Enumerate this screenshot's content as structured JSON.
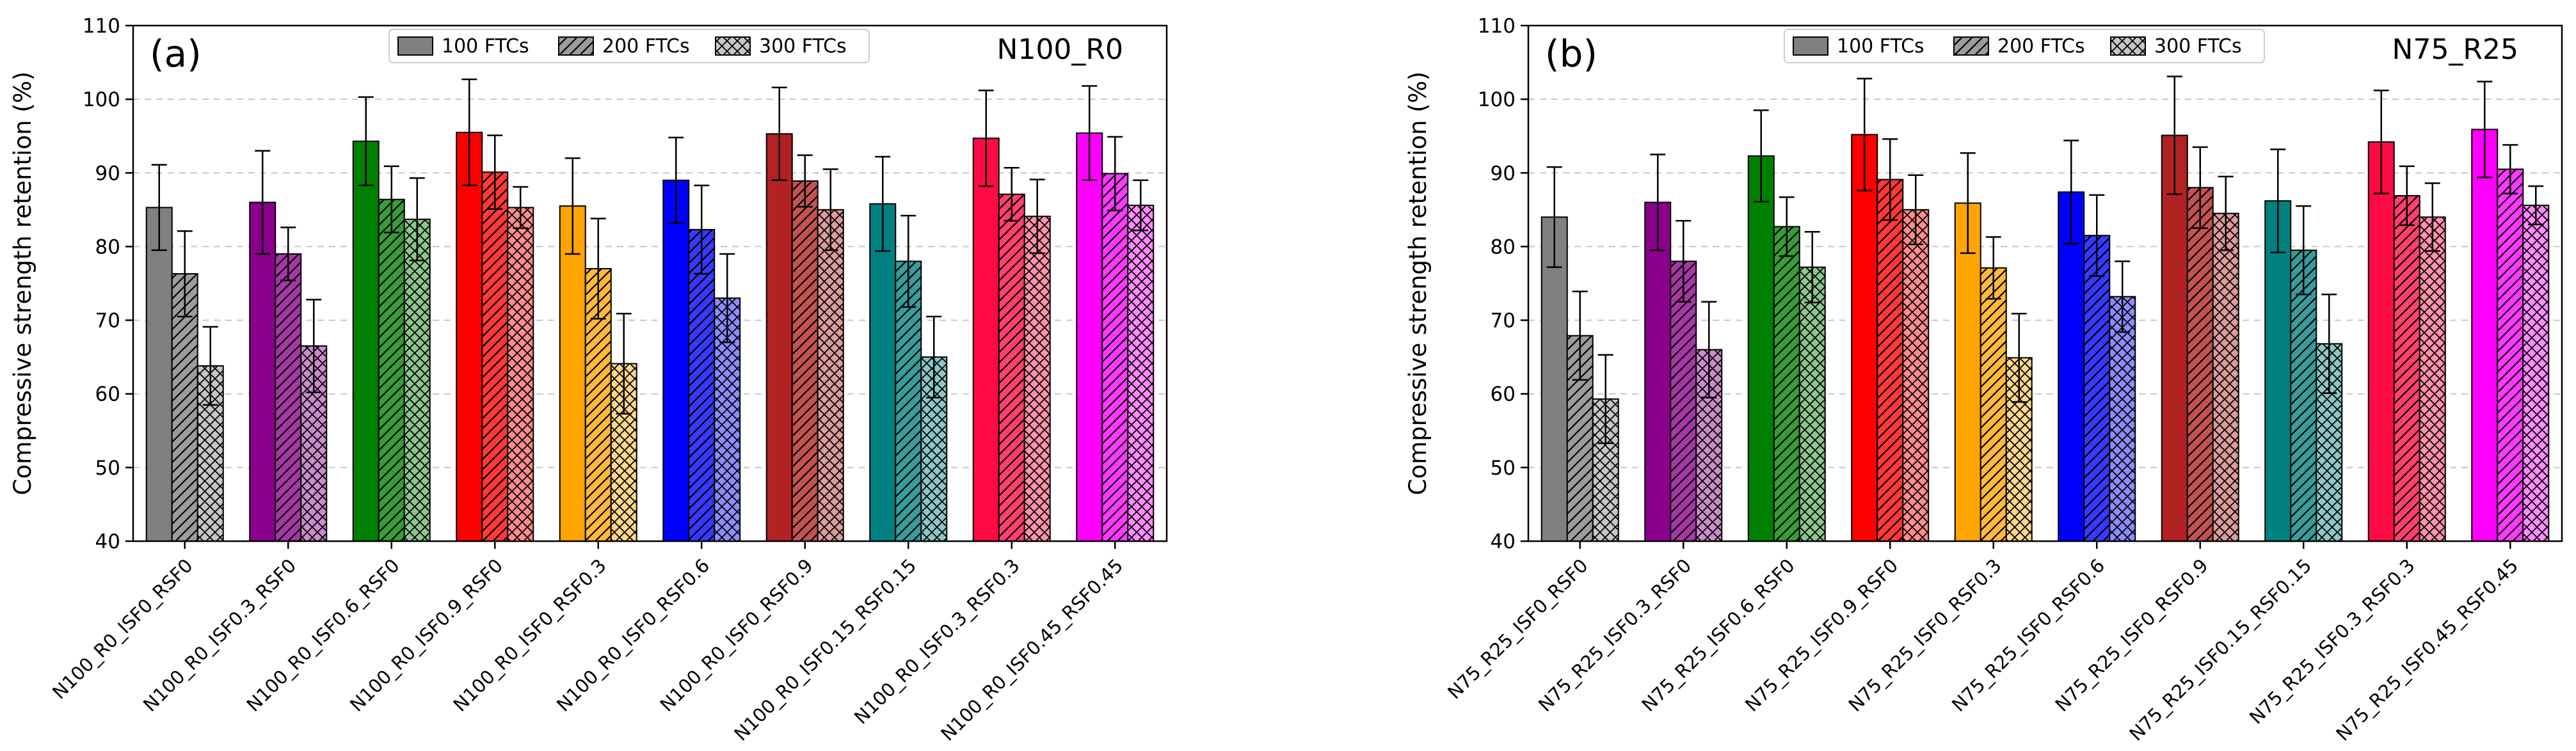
{
  "chart_data": [
    {
      "type": "bar",
      "panel_label": "(a)",
      "title": "N100_R0",
      "xlabel": "",
      "ylabel": "Compressive strength retention (%)",
      "ylim": [
        40,
        110
      ],
      "yticks": [
        40,
        50,
        60,
        70,
        80,
        90,
        100,
        110
      ],
      "grid": true,
      "legend_position": "top-center",
      "series_names": [
        "100 FTCs",
        "200 FTCs",
        "300 FTCs"
      ],
      "categories": [
        "N100_R0_ISF0_RSF0",
        "N100_R0_ISF0.3_RSF0",
        "N100_R0_ISF0.6_RSF0",
        "N100_R0_ISF0.9_RSF0",
        "N100_R0_ISF0_RSF0.3",
        "N100_R0_ISF0_RSF0.6",
        "N100_R0_ISF0_RSF0.9",
        "N100_R0_ISF0.15_RSF0.15",
        "N100_R0_ISF0.3_RSF0.3",
        "N100_R0_ISF0.45_RSF0.45"
      ],
      "colors": [
        "#808080",
        "#8b008b",
        "#008000",
        "#ff0000",
        "#ffa500",
        "#0000ff",
        "#b22222",
        "#008080",
        "#ff0a45",
        "#ff00ff"
      ],
      "series": [
        {
          "name": "100 FTCs",
          "values": [
            85.3,
            86.0,
            94.3,
            95.5,
            85.5,
            89.0,
            95.3,
            85.8,
            94.7,
            95.4
          ],
          "errors": [
            5.8,
            7.0,
            6.0,
            7.2,
            6.5,
            5.8,
            6.3,
            6.4,
            6.5,
            6.4
          ]
        },
        {
          "name": "200 FTCs",
          "values": [
            76.3,
            79.0,
            86.4,
            90.1,
            77.0,
            82.3,
            88.9,
            78.0,
            87.1,
            89.9
          ],
          "errors": [
            5.8,
            3.6,
            4.5,
            5.0,
            6.8,
            6.0,
            3.5,
            6.2,
            3.6,
            5.0
          ]
        },
        {
          "name": "300 FTCs",
          "values": [
            63.8,
            66.5,
            83.7,
            85.3,
            64.1,
            73.0,
            85.0,
            65.0,
            84.1,
            85.6
          ],
          "errors": [
            5.3,
            6.3,
            5.6,
            2.8,
            6.8,
            6.0,
            5.5,
            5.5,
            5.0,
            3.4
          ]
        }
      ]
    },
    {
      "type": "bar",
      "panel_label": "(b)",
      "title": "N75_R25",
      "xlabel": "",
      "ylabel": "Compressive strength retention (%)",
      "ylim": [
        40,
        110
      ],
      "yticks": [
        40,
        50,
        60,
        70,
        80,
        90,
        100,
        110
      ],
      "grid": true,
      "legend_position": "top-center",
      "series_names": [
        "100 FTCs",
        "200 FTCs",
        "300 FTCs"
      ],
      "categories": [
        "N75_R25_ISF0_RSF0",
        "N75_R25_ISF0.3_RSF0",
        "N75_R25_ISF0.6_RSF0",
        "N75_R25_ISF0.9_RSF0",
        "N75_R25_ISF0_RSF0.3",
        "N75_R25_ISF0_RSF0.6",
        "N75_R25_ISF0_RSF0.9",
        "N75_R25_ISF0.15_RSF0.15",
        "N75_R25_ISF0.3_RSF0.3",
        "N75_R25_ISF0.45_RSF0.45"
      ],
      "colors": [
        "#808080",
        "#8b008b",
        "#008000",
        "#ff0000",
        "#ffa500",
        "#0000ff",
        "#b22222",
        "#008080",
        "#ff0a45",
        "#ff00ff"
      ],
      "series": [
        {
          "name": "100 FTCs",
          "values": [
            84.0,
            86.0,
            92.3,
            95.2,
            85.9,
            87.4,
            95.1,
            86.2,
            94.2,
            95.9
          ],
          "errors": [
            6.8,
            6.5,
            6.2,
            7.6,
            6.8,
            7.0,
            8.0,
            7.0,
            7.0,
            6.5
          ]
        },
        {
          "name": "200 FTCs",
          "values": [
            67.9,
            78.0,
            82.7,
            89.1,
            77.1,
            81.5,
            88.0,
            79.5,
            86.9,
            90.5
          ],
          "errors": [
            6.0,
            5.5,
            4.0,
            5.5,
            4.2,
            5.5,
            5.5,
            6.0,
            4.0,
            3.3
          ]
        },
        {
          "name": "300 FTCs",
          "values": [
            59.3,
            66.0,
            77.2,
            85.0,
            64.9,
            73.2,
            84.5,
            66.8,
            84.0,
            85.6
          ],
          "errors": [
            6.0,
            6.5,
            4.8,
            4.7,
            6.0,
            4.8,
            5.0,
            6.7,
            4.6,
            2.6
          ]
        }
      ]
    }
  ]
}
